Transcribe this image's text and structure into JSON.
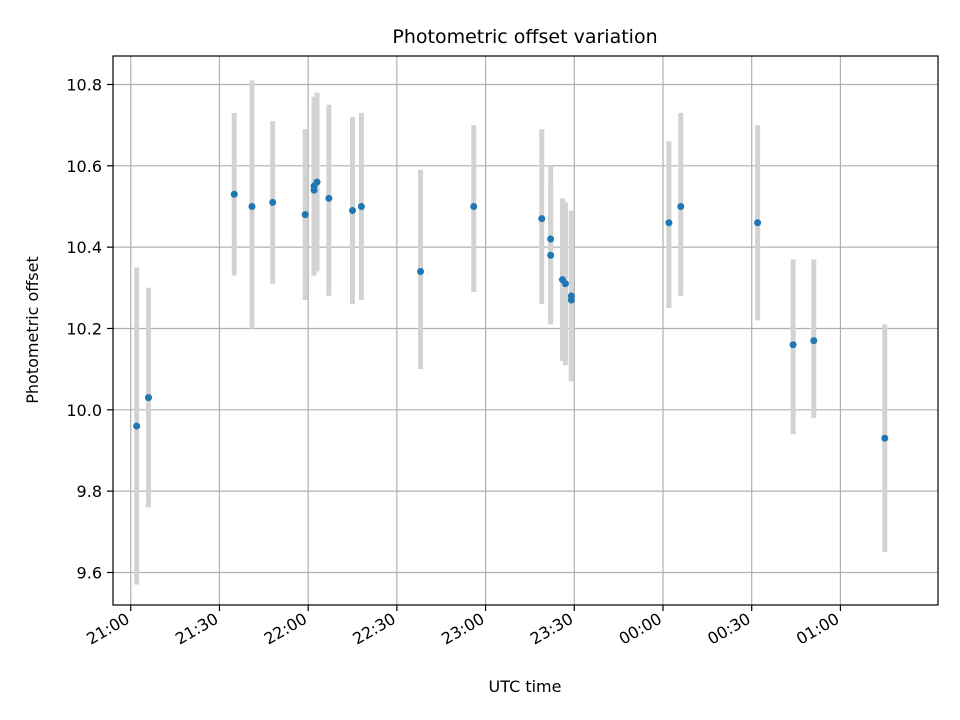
{
  "chart_data": {
    "type": "scatter",
    "title": "Photometric offset variation",
    "xlabel": "UTC time",
    "ylabel": "Photometric offset",
    "grid": true,
    "xlim": [
      "20:54",
      "01:33"
    ],
    "ylim": [
      9.52,
      10.87
    ],
    "x_ticks": [
      "21:00",
      "21:30",
      "22:00",
      "22:30",
      "23:00",
      "23:30",
      "00:00",
      "00:30",
      "01:00"
    ],
    "y_ticks": [
      "9.6",
      "9.8",
      "10.0",
      "10.2",
      "10.4",
      "10.6",
      "10.8"
    ],
    "colors": {
      "point": "#1f77b4",
      "errorbar": "#d3d3d3",
      "grid": "#b0b0b0"
    },
    "points": [
      {
        "time": "21:02",
        "y": 9.96,
        "ylow": 9.57,
        "yhigh": 10.35
      },
      {
        "time": "21:06",
        "y": 10.03,
        "ylow": 9.76,
        "yhigh": 10.3
      },
      {
        "time": "21:35",
        "y": 10.53,
        "ylow": 10.33,
        "yhigh": 10.73
      },
      {
        "time": "21:41",
        "y": 10.5,
        "ylow": 10.2,
        "yhigh": 10.81
      },
      {
        "time": "21:48",
        "y": 10.51,
        "ylow": 10.31,
        "yhigh": 10.71
      },
      {
        "time": "21:59",
        "y": 10.48,
        "ylow": 10.27,
        "yhigh": 10.69
      },
      {
        "time": "22:02",
        "y": 10.55,
        "ylow": 10.33,
        "yhigh": 10.77
      },
      {
        "time": "22:02",
        "y": 10.54,
        "ylow": 10.33,
        "yhigh": 10.75
      },
      {
        "time": "22:03",
        "y": 10.56,
        "ylow": 10.34,
        "yhigh": 10.78
      },
      {
        "time": "22:07",
        "y": 10.52,
        "ylow": 10.28,
        "yhigh": 10.75
      },
      {
        "time": "22:15",
        "y": 10.49,
        "ylow": 10.26,
        "yhigh": 10.72
      },
      {
        "time": "22:18",
        "y": 10.5,
        "ylow": 10.27,
        "yhigh": 10.73
      },
      {
        "time": "22:38",
        "y": 10.34,
        "ylow": 10.1,
        "yhigh": 10.59
      },
      {
        "time": "22:56",
        "y": 10.5,
        "ylow": 10.29,
        "yhigh": 10.7
      },
      {
        "time": "23:19",
        "y": 10.47,
        "ylow": 10.26,
        "yhigh": 10.69
      },
      {
        "time": "23:22",
        "y": 10.42,
        "ylow": 10.23,
        "yhigh": 10.6
      },
      {
        "time": "23:22",
        "y": 10.38,
        "ylow": 10.21,
        "yhigh": 10.55
      },
      {
        "time": "23:26",
        "y": 10.32,
        "ylow": 10.12,
        "yhigh": 10.52
      },
      {
        "time": "23:27",
        "y": 10.31,
        "ylow": 10.11,
        "yhigh": 10.51
      },
      {
        "time": "23:29",
        "y": 10.28,
        "ylow": 10.07,
        "yhigh": 10.49
      },
      {
        "time": "23:29",
        "y": 10.27,
        "ylow": 10.07,
        "yhigh": 10.48
      },
      {
        "time": "00:02",
        "y": 10.46,
        "ylow": 10.25,
        "yhigh": 10.66
      },
      {
        "time": "00:06",
        "y": 10.5,
        "ylow": 10.28,
        "yhigh": 10.73
      },
      {
        "time": "00:32",
        "y": 10.46,
        "ylow": 10.22,
        "yhigh": 10.7
      },
      {
        "time": "00:44",
        "y": 10.16,
        "ylow": 9.94,
        "yhigh": 10.37
      },
      {
        "time": "00:51",
        "y": 10.17,
        "ylow": 9.98,
        "yhigh": 10.37
      },
      {
        "time": "01:15",
        "y": 9.93,
        "ylow": 9.65,
        "yhigh": 10.21
      }
    ]
  }
}
